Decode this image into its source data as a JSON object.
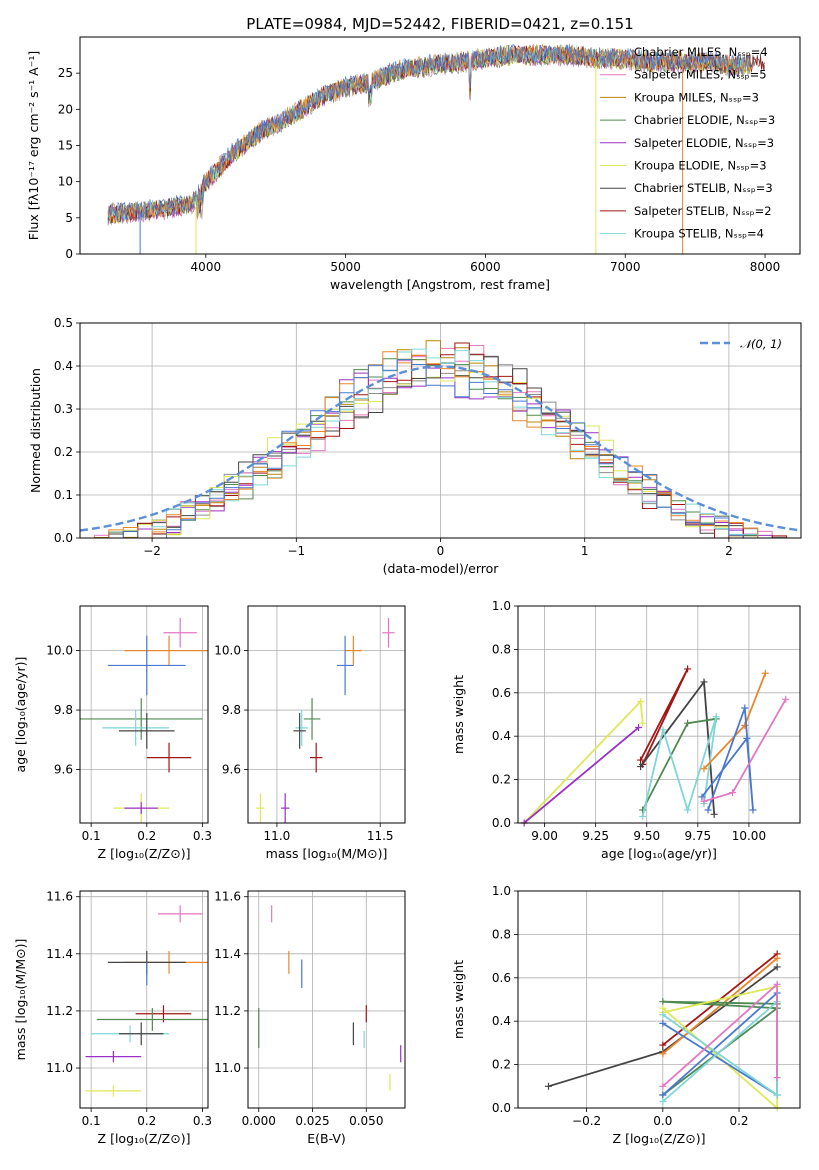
{
  "figure": {
    "title": "PLATE=0984, MJD=52442, FIBERID=0421, z=0.151"
  },
  "colors": {
    "Chabrier MILES": "#4878cf",
    "Salpeter MILES": "#e8872c",
    "Kroupa MILES": "#b8860b",
    "Chabrier ELODIE": "#4f8a4f",
    "Salpeter ELODIE": "#9b30c8",
    "Kroupa ELODIE": "#dfe856",
    "Chabrier STELIB": "#444444",
    "Salpeter STELIB": "#a31515",
    "Kroupa STELIB": "#7fd6d8",
    "pink": "#e377c2",
    "gaussian": "#5b8fd6",
    "grid": "#b0b0b0"
  },
  "chart_data": [
    {
      "id": "spectrum",
      "type": "line",
      "title": "PLATE=0984, MJD=52442, FIBERID=0421, z=0.151",
      "xlabel": "wavelength [Angstrom, rest frame]",
      "ylabel": "Flux [fλ10⁻¹⁷ erg cm⁻² s⁻¹ A⁻¹]",
      "xlim": [
        3100,
        8250
      ],
      "ylim": [
        0,
        30
      ],
      "xticks": [
        4000,
        5000,
        6000,
        7000,
        8000
      ],
      "yticks": [
        0,
        5,
        10,
        15,
        20,
        25
      ],
      "grid": false,
      "legend_position": "top-right",
      "legend": [
        {
          "label": "Chabrier MILES, Nₛₛₚ=4",
          "color": "#8c8c8c"
        },
        {
          "label": "Salpeter MILES, Nₛₛₚ=5",
          "color": "#e377c2"
        },
        {
          "label": "Kroupa MILES, Nₛₛₚ=3",
          "color": "#b8860b"
        },
        {
          "label": "Chabrier ELODIE, Nₛₛₚ=3",
          "color": "#4f8a4f"
        },
        {
          "label": "Salpeter ELODIE, Nₛₛₚ=3",
          "color": "#9b30c8"
        },
        {
          "label": "Kroupa ELODIE, Nₛₛₚ=3",
          "color": "#dfe856"
        },
        {
          "label": "Chabrier STELIB, Nₛₛₚ=3",
          "color": "#444444"
        },
        {
          "label": "Salpeter STELIB, Nₛₛₚ=2",
          "color": "#a31515"
        },
        {
          "label": "Kroupa STELIB, Nₛₛₚ=4",
          "color": "#7fd6d8"
        }
      ],
      "data_envelope": {
        "x": [
          3300,
          3500,
          3700,
          3900,
          4000,
          4200,
          4400,
          4600,
          4800,
          5000,
          5200,
          5400,
          5600,
          5800,
          6000,
          6200,
          6400,
          6600,
          6800,
          7000,
          7200,
          7400,
          7600,
          7800,
          8000
        ],
        "y": [
          5.5,
          5.8,
          6.2,
          7.0,
          10.0,
          14.0,
          17.0,
          19.0,
          21.5,
          23.0,
          24.0,
          25.5,
          26.0,
          26.5,
          27.0,
          27.5,
          27.5,
          27.5,
          27.0,
          27.0,
          26.5,
          26.5,
          26.5,
          26.0,
          26.5
        ]
      }
    },
    {
      "id": "residuals",
      "type": "line",
      "xlabel": "(data-model)/error",
      "ylabel": "Normed distribution",
      "xlim": [
        -2.5,
        2.5
      ],
      "ylim": [
        0,
        0.5
      ],
      "xticks": [
        -2,
        -1,
        0,
        1,
        2
      ],
      "yticks": [
        0.0,
        0.1,
        0.2,
        0.3,
        0.4,
        0.5
      ],
      "grid": true,
      "legend_position": "top-right",
      "legend": [
        {
          "label": "𝒩(0, 1)",
          "color": "#5b8fd6"
        }
      ],
      "series_curve": {
        "name": "𝒩(0, 1)",
        "mean": 0,
        "sigma": 1
      }
    },
    {
      "id": "age-vs-Z",
      "type": "scatter",
      "xlabel": "Z [log₁₀(Z/Z⊙)]",
      "ylabel": "age  [log₁₀(age/yr)]",
      "xlim": [
        0.08,
        0.31
      ],
      "ylim": [
        9.42,
        10.15
      ],
      "xticks": [
        0.1,
        0.2,
        0.3
      ],
      "yticks": [
        9.6,
        9.8,
        10.0
      ],
      "grid": true,
      "points": [
        {
          "x": 0.26,
          "y": 10.06,
          "xerr": 0.03,
          "yerr": 0.05,
          "color": "#e377c2"
        },
        {
          "x": 0.24,
          "y": 10.0,
          "xerr": 0.08,
          "yerr": 0.05,
          "color": "#e8872c"
        },
        {
          "x": 0.2,
          "y": 9.95,
          "xerr": 0.07,
          "yerr": 0.1,
          "color": "#4878cf"
        },
        {
          "x": 0.19,
          "y": 9.77,
          "xerr": 0.11,
          "yerr": 0.07,
          "color": "#4f8a4f"
        },
        {
          "x": 0.18,
          "y": 9.74,
          "xerr": 0.06,
          "yerr": 0.06,
          "color": "#7fd6d8"
        },
        {
          "x": 0.2,
          "y": 9.73,
          "xerr": 0.05,
          "yerr": 0.06,
          "color": "#444444"
        },
        {
          "x": 0.24,
          "y": 9.64,
          "xerr": 0.04,
          "yerr": 0.05,
          "color": "#a31515"
        },
        {
          "x": 0.19,
          "y": 9.47,
          "xerr": 0.05,
          "yerr": 0.05,
          "color": "#dfe856"
        },
        {
          "x": 0.19,
          "y": 9.47,
          "xerr": 0.03,
          "yerr": 0.02,
          "color": "#9b30c8"
        }
      ]
    },
    {
      "id": "age-vs-mass",
      "type": "scatter",
      "xlabel": "mass [log₁₀(M/M⊙)]",
      "ylabel": "",
      "xlim": [
        10.86,
        11.62
      ],
      "ylim": [
        9.42,
        10.15
      ],
      "xticks": [
        11.0,
        11.5
      ],
      "yticks": [
        9.6,
        9.8,
        10.0
      ],
      "grid": true,
      "points": [
        {
          "x": 11.54,
          "y": 10.06,
          "xerr": 0.03,
          "yerr": 0.05,
          "color": "#e377c2"
        },
        {
          "x": 11.37,
          "y": 10.0,
          "xerr": 0.04,
          "yerr": 0.05,
          "color": "#e8872c"
        },
        {
          "x": 11.33,
          "y": 9.95,
          "xerr": 0.04,
          "yerr": 0.1,
          "color": "#4878cf"
        },
        {
          "x": 11.17,
          "y": 9.77,
          "xerr": 0.04,
          "yerr": 0.07,
          "color": "#4f8a4f"
        },
        {
          "x": 11.12,
          "y": 9.74,
          "xerr": 0.03,
          "yerr": 0.06,
          "color": "#7fd6d8"
        },
        {
          "x": 11.11,
          "y": 9.73,
          "xerr": 0.03,
          "yerr": 0.06,
          "color": "#444444"
        },
        {
          "x": 11.19,
          "y": 9.64,
          "xerr": 0.03,
          "yerr": 0.05,
          "color": "#a31515"
        },
        {
          "x": 10.92,
          "y": 9.47,
          "xerr": 0.02,
          "yerr": 0.05,
          "color": "#dfe856"
        },
        {
          "x": 11.04,
          "y": 9.47,
          "xerr": 0.02,
          "yerr": 0.05,
          "color": "#9b30c8"
        }
      ]
    },
    {
      "id": "massweight-vs-age",
      "type": "line",
      "xlabel": "age  [log₁₀(age/yr)]",
      "ylabel": "mass weight",
      "xlim": [
        8.87,
        10.25
      ],
      "ylim": [
        0,
        1.0
      ],
      "xticks": [
        9.0,
        9.25,
        9.5,
        9.75,
        10.0
      ],
      "yticks": [
        0.0,
        0.2,
        0.4,
        0.6,
        0.8,
        1.0
      ],
      "grid": true,
      "series": [
        {
          "color": "#dfe856",
          "x": [
            8.9,
            9.47,
            9.48
          ],
          "y": [
            0.0,
            0.56,
            0.46
          ]
        },
        {
          "color": "#9b30c8",
          "x": [
            8.9,
            9.46
          ],
          "y": [
            0.0,
            0.44
          ]
        },
        {
          "color": "#a31515",
          "x": [
            9.47,
            9.7,
            9.48
          ],
          "y": [
            0.29,
            0.71,
            0.27
          ]
        },
        {
          "color": "#444444",
          "x": [
            9.47,
            9.78,
            9.83
          ],
          "y": [
            0.26,
            0.65,
            0.04
          ]
        },
        {
          "color": "#4f8a4f",
          "x": [
            9.48,
            9.7,
            9.84
          ],
          "y": [
            0.06,
            0.46,
            0.48
          ]
        },
        {
          "color": "#7fd6d8",
          "x": [
            9.48,
            9.58,
            9.7,
            9.84,
            9.78
          ],
          "y": [
            0.03,
            0.43,
            0.06,
            0.49,
            0.09
          ]
        },
        {
          "color": "#e8872c",
          "x": [
            9.78,
            9.98,
            10.08
          ],
          "y": [
            0.25,
            0.45,
            0.69
          ]
        },
        {
          "color": "#4878cf",
          "x": [
            9.8,
            9.98,
            10.02,
            9.99,
            9.77
          ],
          "y": [
            0.06,
            0.53,
            0.06,
            0.39,
            0.12
          ]
        },
        {
          "color": "#e377c2",
          "x": [
            9.78,
            9.92,
            10.18
          ],
          "y": [
            0.1,
            0.14,
            0.57
          ]
        }
      ]
    },
    {
      "id": "mass-vs-Z",
      "type": "scatter",
      "xlabel": "Z [log₁₀(Z/Z⊙)]",
      "ylabel": "mass [log₁₀(M/M⊙)]",
      "xlim": [
        0.08,
        0.31
      ],
      "ylim": [
        10.86,
        11.62
      ],
      "xticks": [
        0.1,
        0.2,
        0.3
      ],
      "yticks": [
        11.0,
        11.2,
        11.4,
        11.6
      ],
      "grid": true,
      "points": [
        {
          "x": 0.26,
          "y": 11.54,
          "xerr": 0.04,
          "yerr": 0.03,
          "color": "#e377c2"
        },
        {
          "x": 0.24,
          "y": 11.37,
          "xerr": 0.08,
          "yerr": 0.04,
          "color": "#e8872c"
        },
        {
          "x": 0.2,
          "y": 11.37,
          "xerr": 0.07,
          "yerr": 0.04,
          "color": "#444444"
        },
        {
          "x": 0.2,
          "y": 11.33,
          "xerr": 0.001,
          "yerr": 0.04,
          "color": "#4878cf"
        },
        {
          "x": 0.23,
          "y": 11.19,
          "xerr": 0.05,
          "yerr": 0.03,
          "color": "#a31515"
        },
        {
          "x": 0.21,
          "y": 11.17,
          "xerr": 0.1,
          "yerr": 0.04,
          "color": "#4f8a4f"
        },
        {
          "x": 0.17,
          "y": 11.12,
          "xerr": 0.07,
          "yerr": 0.03,
          "color": "#7fd6d8"
        },
        {
          "x": 0.19,
          "y": 11.12,
          "xerr": 0.04,
          "yerr": 0.04,
          "color": "#444444"
        },
        {
          "x": 0.14,
          "y": 11.04,
          "xerr": 0.05,
          "yerr": 0.02,
          "color": "#9b30c8"
        },
        {
          "x": 0.14,
          "y": 10.92,
          "xerr": 0.05,
          "yerr": 0.02,
          "color": "#dfe856"
        }
      ]
    },
    {
      "id": "mass-vs-EBV",
      "type": "scatter",
      "xlabel": "E(B-V)",
      "ylabel": "",
      "xlim": [
        -0.005,
        0.068
      ],
      "ylim": [
        10.86,
        11.62
      ],
      "xticks": [
        0.0,
        0.025,
        0.05
      ],
      "xticklabels": [
        "0.000",
        "0.025",
        "0.050"
      ],
      "yticks": [
        11.0,
        11.2,
        11.4,
        11.6
      ],
      "grid": true,
      "points": [
        {
          "x": 0.006,
          "y": 11.54,
          "yerr": 0.03,
          "color": "#e377c2"
        },
        {
          "x": 0.014,
          "y": 11.37,
          "yerr": 0.04,
          "color": "#e8872c"
        },
        {
          "x": 0.02,
          "y": 11.33,
          "yerr": 0.05,
          "color": "#4878cf"
        },
        {
          "x": 0.0,
          "y": 11.14,
          "yerr": 0.07,
          "color": "#4f8a4f"
        },
        {
          "x": 0.05,
          "y": 11.19,
          "yerr": 0.03,
          "color": "#a31515"
        },
        {
          "x": 0.044,
          "y": 11.12,
          "yerr": 0.04,
          "color": "#444444"
        },
        {
          "x": 0.049,
          "y": 11.1,
          "yerr": 0.03,
          "color": "#7fd6d8"
        },
        {
          "x": 0.066,
          "y": 11.05,
          "yerr": 0.03,
          "color": "#9b30c8"
        },
        {
          "x": 0.061,
          "y": 10.95,
          "yerr": 0.03,
          "color": "#dfe856"
        }
      ]
    },
    {
      "id": "massweight-vs-Z",
      "type": "line",
      "xlabel": "Z [log₁₀(Z/Z⊙)]",
      "ylabel": "mass weight",
      "xlim": [
        -0.38,
        0.36
      ],
      "ylim": [
        0,
        1.0
      ],
      "xticks": [
        -0.2,
        0.0,
        0.2
      ],
      "yticks": [
        0.0,
        0.2,
        0.4,
        0.6,
        0.8,
        1.0
      ],
      "grid": true,
      "series": [
        {
          "color": "#444444",
          "x": [
            -0.3,
            0.0,
            0.3
          ],
          "y": [
            0.1,
            0.26,
            0.65
          ]
        },
        {
          "color": "#a31515",
          "x": [
            0.0,
            0.3
          ],
          "y": [
            0.29,
            0.71
          ]
        },
        {
          "color": "#e8872c",
          "x": [
            0.0,
            0.3
          ],
          "y": [
            0.25,
            0.69
          ]
        },
        {
          "color": "#4f8a4f",
          "x": [
            0.0,
            0.3,
            0.3,
            0.0,
            0.3
          ],
          "y": [
            0.06,
            0.46,
            0.48,
            0.49,
            0.46
          ]
        },
        {
          "color": "#dfe856",
          "x": [
            0.0,
            0.3,
            0.3,
            0.0
          ],
          "y": [
            0.44,
            0.56,
            0.0,
            0.46
          ]
        },
        {
          "color": "#4878cf",
          "x": [
            0.0,
            0.3,
            0.3,
            0.0
          ],
          "y": [
            0.06,
            0.53,
            0.06,
            0.39
          ]
        },
        {
          "color": "#7fd6d8",
          "x": [
            0.0,
            0.3,
            0.3,
            0.0
          ],
          "y": [
            0.03,
            0.49,
            0.06,
            0.43
          ]
        },
        {
          "color": "#e377c2",
          "x": [
            0.0,
            0.3,
            0.3
          ],
          "y": [
            0.1,
            0.57,
            0.14
          ]
        }
      ]
    }
  ]
}
